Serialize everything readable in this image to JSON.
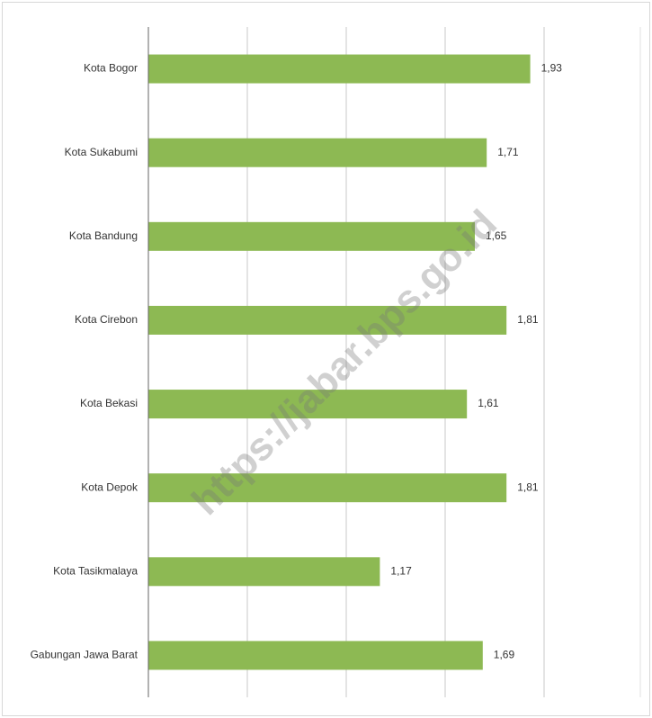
{
  "chart_data": {
    "type": "bar",
    "orientation": "horizontal",
    "categories": [
      "Kota Bogor",
      "Kota Sukabumi",
      "Kota Bandung",
      "Kota Cirebon",
      "Kota Bekasi",
      "Kota Depok",
      "Kota Tasikmalaya",
      "Gabungan Jawa Barat"
    ],
    "values": [
      1.93,
      1.71,
      1.65,
      1.81,
      1.61,
      1.81,
      1.17,
      1.69
    ],
    "value_labels": [
      "1,93",
      "1,71",
      "1,65",
      "1,81",
      "1,61",
      "1,81",
      "1,17",
      "1,69"
    ],
    "color": "#8db953",
    "xlim": [
      0,
      2
    ],
    "xticks": [
      0,
      0.5,
      1,
      1.5,
      2
    ],
    "grid": true,
    "watermark": "https://jabar.bps.go.id"
  }
}
